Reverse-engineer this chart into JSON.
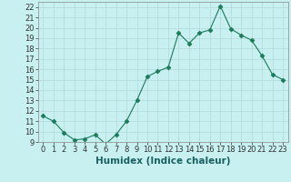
{
  "x": [
    0,
    1,
    2,
    3,
    4,
    5,
    6,
    7,
    8,
    9,
    10,
    11,
    12,
    13,
    14,
    15,
    16,
    17,
    18,
    19,
    20,
    21,
    22,
    23
  ],
  "y": [
    11.5,
    11.0,
    9.9,
    9.2,
    9.3,
    9.7,
    8.8,
    9.7,
    11.0,
    13.0,
    15.3,
    15.8,
    16.2,
    19.5,
    18.5,
    19.5,
    19.8,
    22.1,
    19.9,
    19.3,
    18.8,
    17.3,
    15.5,
    15.0
  ],
  "line_color": "#1a7a5a",
  "marker": "D",
  "marker_size": 2.5,
  "bg_color": "#c8f0f0",
  "grid_color": "#b0d8d8",
  "xlabel": "Humidex (Indice chaleur)",
  "xlim": [
    -0.5,
    23.5
  ],
  "ylim": [
    9,
    22.5
  ],
  "yticks": [
    9,
    10,
    11,
    12,
    13,
    14,
    15,
    16,
    17,
    18,
    19,
    20,
    21,
    22
  ],
  "xticks": [
    0,
    1,
    2,
    3,
    4,
    5,
    6,
    7,
    8,
    9,
    10,
    11,
    12,
    13,
    14,
    15,
    16,
    17,
    18,
    19,
    20,
    21,
    22,
    23
  ],
  "tick_label_fontsize": 6,
  "xlabel_fontsize": 7.5
}
